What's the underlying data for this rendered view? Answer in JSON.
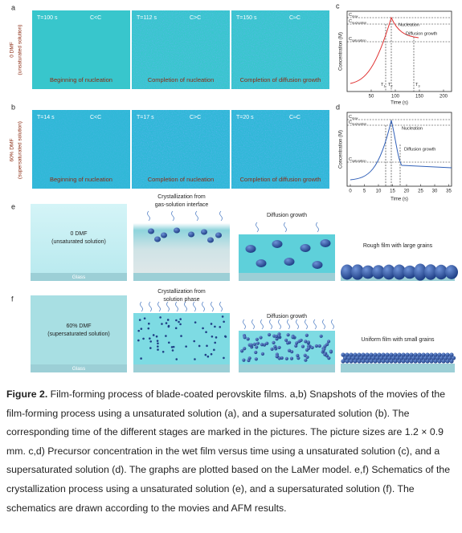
{
  "panel_a": {
    "label": "a",
    "row_label": "0 DMF",
    "row_sublabel": "(unsaturated solution)",
    "frames": [
      {
        "time": "T=100 s",
        "condition": "C<C",
        "caption": "Beginning of nucleation"
      },
      {
        "time": "T=112 s",
        "condition": "C>C",
        "caption": "Completion of nucleation"
      },
      {
        "time": "T=150 s",
        "condition": "C≈C",
        "caption": "Completion of diffusion growth"
      }
    ]
  },
  "panel_b": {
    "label": "b",
    "row_label": "60% DMF",
    "row_sublabel": "(supersaturated solution)",
    "frames": [
      {
        "time": "T=14 s",
        "condition": "C<C",
        "caption": "Beginning of nucleation"
      },
      {
        "time": "T=17 s",
        "condition": "C>C",
        "caption": "Completion of nucleation"
      },
      {
        "time": "T=20 s",
        "condition": "C≈C",
        "caption": "Completion of diffusion growth"
      }
    ]
  },
  "panel_c": {
    "label": "c",
    "y_axis": "Concentration (M)",
    "x_axis": "Time (s)",
    "xticks": [
      50,
      100,
      150,
      200
    ],
    "levels": [
      {
        "symbol": "C",
        "subscript": "max"
      },
      {
        "symbol": "C",
        "subscript": "nucleation"
      },
      {
        "symbol": "C",
        "subscript": "saturation"
      }
    ],
    "markers": [
      {
        "symbol": "T",
        "subscript": "1"
      },
      {
        "symbol": "T",
        "subscript": "2"
      },
      {
        "symbol": "T",
        "subscript": "3"
      }
    ],
    "annotations": [
      "Nucleation",
      "Diffusion growth"
    ]
  },
  "panel_d": {
    "label": "d",
    "y_axis": "Concentration (M)",
    "x_axis": "Time (s)",
    "xticks": [
      0,
      5,
      10,
      15,
      20,
      25,
      30,
      35
    ],
    "levels": [
      {
        "symbol": "C",
        "subscript": "max"
      },
      {
        "symbol": "C",
        "subscript": "nucleation"
      },
      {
        "symbol": "C",
        "subscript": "saturation"
      }
    ],
    "annotations": [
      "Nucleation",
      "Diffusion growth"
    ]
  },
  "panel_e": {
    "label": "e",
    "glass": "Glass",
    "solution": [
      "0 DMF",
      "(unsaturated solution)"
    ],
    "step1": [
      "Crystallization from",
      "gas-solution interface"
    ],
    "step2": "Diffusion growth",
    "result": "Rough film with large grains"
  },
  "panel_f": {
    "label": "f",
    "glass": "Glass",
    "solution": [
      "60% DMF",
      "(supersaturated solution)"
    ],
    "step1": [
      "Crystallization from",
      "solution phase"
    ],
    "step2": "Diffusion growth",
    "result": "Uniform film with small grains"
  },
  "caption": {
    "label": "Figure 2.",
    "text": "Film-forming process of blade-coated perovskite films. a,b) Snapshots of the movies of the film-forming process using a unsaturated solution (a), and a supersaturated solution (b). The corresponding time of the different stages are marked in the pictures. The picture sizes are 1.2 × 0.9 mm. c,d) Precursor concentration in the wet film versus time using a unsaturated solution (c), and a supersaturated solution (d). The graphs are plotted based on the LaMer model. e,f) Schematics of the crystallization process using a unsaturated solution (e), and a supersaturated solution (f). The schematics are drawn according to the movies and AFM results."
  }
}
